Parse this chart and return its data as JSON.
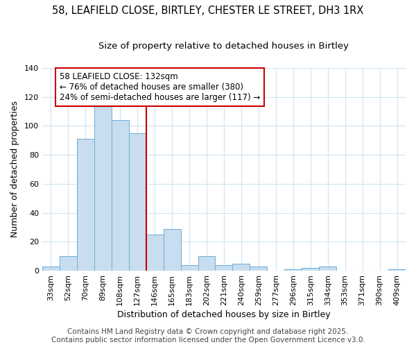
{
  "title1": "58, LEAFIELD CLOSE, BIRTLEY, CHESTER LE STREET, DH3 1RX",
  "title2": "Size of property relative to detached houses in Birtley",
  "xlabel": "Distribution of detached houses by size in Birtley",
  "ylabel": "Number of detached properties",
  "categories": [
    "33sqm",
    "52sqm",
    "70sqm",
    "89sqm",
    "108sqm",
    "127sqm",
    "146sqm",
    "165sqm",
    "183sqm",
    "202sqm",
    "221sqm",
    "240sqm",
    "259sqm",
    "277sqm",
    "296sqm",
    "315sqm",
    "334sqm",
    "353sqm",
    "371sqm",
    "390sqm",
    "409sqm"
  ],
  "values": [
    3,
    10,
    91,
    115,
    104,
    95,
    25,
    29,
    4,
    10,
    4,
    5,
    3,
    0,
    1,
    2,
    3,
    0,
    0,
    0,
    1
  ],
  "bar_color": "#c8ddf0",
  "bar_edge_color": "#6aaed6",
  "vline_x_index": 5,
  "vline_color": "#cc0000",
  "annotation_text": "58 LEAFIELD CLOSE: 132sqm\n← 76% of detached houses are smaller (380)\n24% of semi-detached houses are larger (117) →",
  "annotation_box_color": "white",
  "annotation_box_edge_color": "#cc0000",
  "ylim": [
    0,
    140
  ],
  "yticks": [
    0,
    20,
    40,
    60,
    80,
    100,
    120,
    140
  ],
  "footer_text": "Contains HM Land Registry data © Crown copyright and database right 2025.\nContains public sector information licensed under the Open Government Licence v3.0.",
  "background_color": "white",
  "grid_color": "#d0e4f0",
  "title_fontsize": 10.5,
  "subtitle_fontsize": 9.5,
  "axis_label_fontsize": 9,
  "tick_fontsize": 8,
  "annotation_fontsize": 8.5,
  "footer_fontsize": 7.5
}
